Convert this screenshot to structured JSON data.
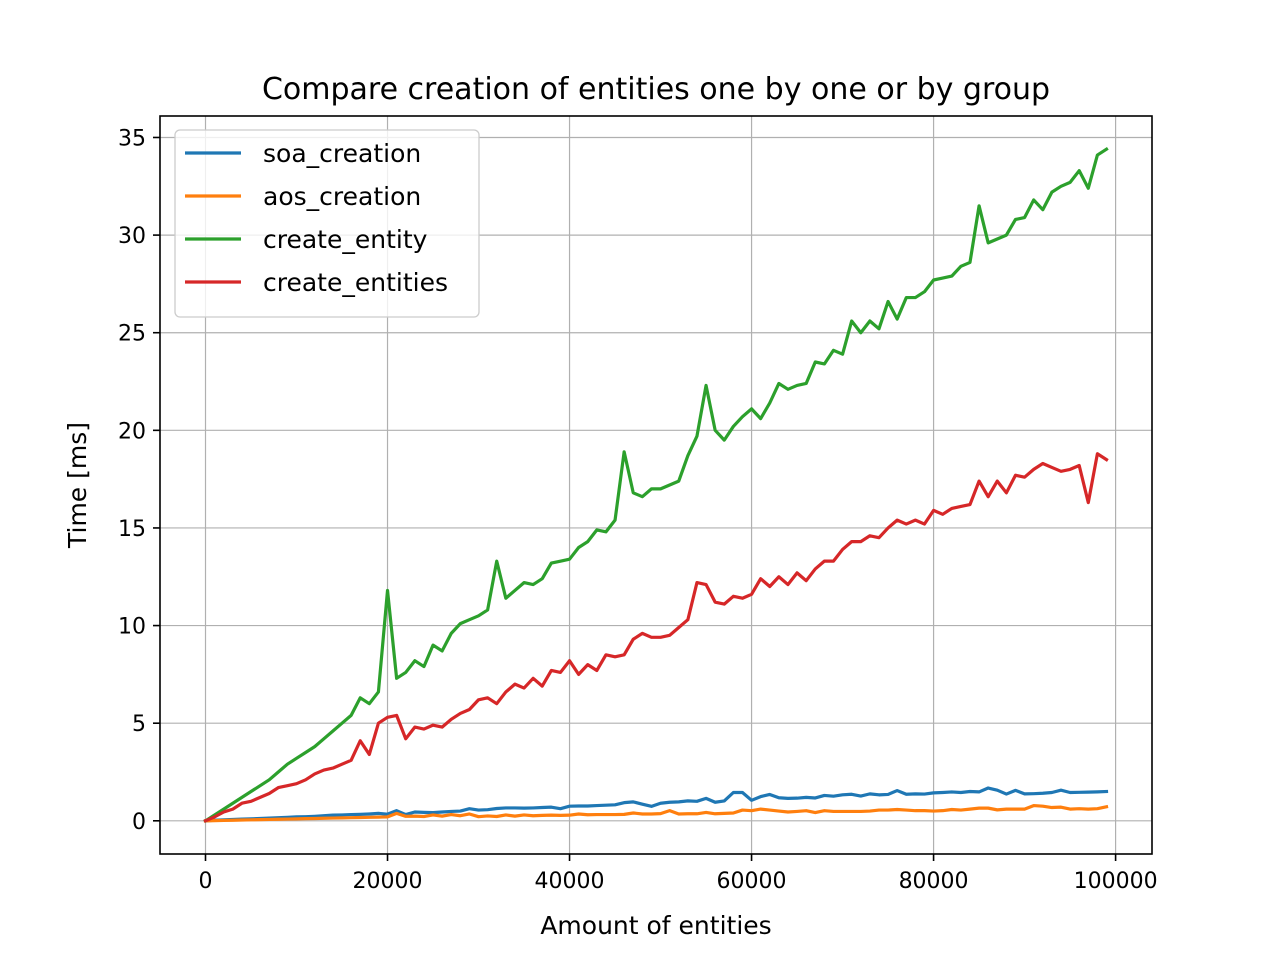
{
  "chart_data": {
    "type": "line",
    "title": "Compare creation of entities one by one or by group",
    "xlabel": "Amount of entities",
    "ylabel": "Time [ms]",
    "xlim": [
      -5000,
      104000
    ],
    "ylim": [
      -1.7,
      36.1
    ],
    "xticks": [
      0,
      20000,
      40000,
      60000,
      80000,
      100000
    ],
    "xtick_labels": [
      "0",
      "20000",
      "40000",
      "60000",
      "80000",
      "100000"
    ],
    "yticks": [
      0,
      5,
      10,
      15,
      20,
      25,
      30,
      35
    ],
    "ytick_labels": [
      "0",
      "5",
      "10",
      "15",
      "20",
      "25",
      "30",
      "35"
    ],
    "grid": true,
    "legend_position": "upper-left",
    "x": [
      0,
      1000,
      2000,
      3000,
      4000,
      5000,
      6000,
      7000,
      8000,
      9000,
      10000,
      11000,
      12000,
      13000,
      14000,
      15000,
      16000,
      17000,
      18000,
      19000,
      20000,
      21000,
      22000,
      23000,
      24000,
      25000,
      26000,
      27000,
      28000,
      29000,
      30000,
      31000,
      32000,
      33000,
      34000,
      35000,
      36000,
      37000,
      38000,
      39000,
      40000,
      41000,
      42000,
      43000,
      44000,
      45000,
      46000,
      47000,
      48000,
      49000,
      50000,
      51000,
      52000,
      53000,
      54000,
      55000,
      56000,
      57000,
      58000,
      59000,
      60000,
      61000,
      62000,
      63000,
      64000,
      65000,
      66000,
      67000,
      68000,
      69000,
      70000,
      71000,
      72000,
      73000,
      74000,
      75000,
      76000,
      77000,
      78000,
      79000,
      80000,
      81000,
      82000,
      83000,
      84000,
      85000,
      86000,
      87000,
      88000,
      89000,
      90000,
      91000,
      92000,
      93000,
      94000,
      95000,
      96000,
      97000,
      98000,
      99000
    ],
    "series": [
      {
        "name": "soa_creation",
        "color": "#1f77b4",
        "values": [
          0.0,
          0.03,
          0.05,
          0.07,
          0.09,
          0.1,
          0.12,
          0.14,
          0.16,
          0.18,
          0.2,
          0.21,
          0.23,
          0.26,
          0.29,
          0.3,
          0.32,
          0.33,
          0.35,
          0.38,
          0.34,
          0.52,
          0.32,
          0.45,
          0.43,
          0.42,
          0.45,
          0.48,
          0.5,
          0.62,
          0.55,
          0.57,
          0.63,
          0.66,
          0.66,
          0.65,
          0.66,
          0.68,
          0.7,
          0.62,
          0.75,
          0.76,
          0.76,
          0.78,
          0.8,
          0.82,
          0.93,
          0.97,
          0.85,
          0.74,
          0.9,
          0.95,
          0.97,
          1.02,
          1.0,
          1.15,
          0.95,
          1.02,
          1.45,
          1.45,
          1.05,
          1.24,
          1.35,
          1.18,
          1.15,
          1.16,
          1.2,
          1.17,
          1.3,
          1.26,
          1.33,
          1.36,
          1.27,
          1.38,
          1.33,
          1.35,
          1.55,
          1.36,
          1.38,
          1.37,
          1.43,
          1.45,
          1.48,
          1.45,
          1.5,
          1.48,
          1.68,
          1.57,
          1.37,
          1.56,
          1.38,
          1.39,
          1.41,
          1.45,
          1.57,
          1.45,
          1.46,
          1.47,
          1.48,
          1.5
        ]
      },
      {
        "name": "aos_creation",
        "color": "#ff7f0e",
        "values": [
          0.0,
          0.01,
          0.02,
          0.03,
          0.04,
          0.05,
          0.06,
          0.07,
          0.08,
          0.09,
          0.1,
          0.11,
          0.12,
          0.13,
          0.14,
          0.15,
          0.16,
          0.17,
          0.18,
          0.19,
          0.2,
          0.38,
          0.23,
          0.24,
          0.22,
          0.3,
          0.24,
          0.32,
          0.26,
          0.35,
          0.21,
          0.25,
          0.22,
          0.3,
          0.24,
          0.3,
          0.26,
          0.28,
          0.29,
          0.28,
          0.29,
          0.35,
          0.31,
          0.32,
          0.32,
          0.32,
          0.33,
          0.4,
          0.35,
          0.35,
          0.37,
          0.52,
          0.35,
          0.36,
          0.36,
          0.43,
          0.36,
          0.38,
          0.4,
          0.55,
          0.52,
          0.6,
          0.55,
          0.5,
          0.45,
          0.48,
          0.52,
          0.42,
          0.52,
          0.48,
          0.48,
          0.48,
          0.48,
          0.5,
          0.55,
          0.55,
          0.58,
          0.55,
          0.52,
          0.52,
          0.5,
          0.52,
          0.58,
          0.55,
          0.6,
          0.65,
          0.65,
          0.56,
          0.6,
          0.6,
          0.6,
          0.78,
          0.75,
          0.68,
          0.7,
          0.6,
          0.62,
          0.6,
          0.62,
          0.72
        ]
      },
      {
        "name": "create_entity",
        "color": "#2ca02c",
        "values": [
          0.0,
          0.3,
          0.6,
          0.9,
          1.2,
          1.5,
          1.8,
          2.1,
          2.5,
          2.9,
          3.2,
          3.5,
          3.8,
          4.2,
          4.6,
          5.0,
          5.4,
          6.3,
          6.0,
          6.6,
          11.8,
          7.3,
          7.6,
          8.2,
          7.9,
          9.0,
          8.7,
          9.6,
          10.1,
          10.3,
          10.5,
          10.8,
          13.3,
          11.4,
          11.8,
          12.2,
          12.1,
          12.4,
          13.2,
          13.3,
          13.4,
          14.0,
          14.3,
          14.9,
          14.8,
          15.4,
          18.9,
          16.8,
          16.6,
          17.0,
          17.0,
          17.2,
          17.4,
          18.7,
          19.7,
          22.3,
          20.0,
          19.5,
          20.2,
          20.7,
          21.1,
          20.6,
          21.4,
          22.4,
          22.1,
          22.3,
          22.4,
          23.5,
          23.4,
          24.1,
          23.9,
          25.6,
          25.0,
          25.6,
          25.2,
          26.6,
          25.7,
          26.8,
          26.8,
          27.1,
          27.7,
          27.8,
          27.9,
          28.4,
          28.6,
          31.5,
          29.6,
          29.8,
          30.0,
          30.8,
          30.9,
          31.8,
          31.3,
          32.2,
          32.5,
          32.7,
          33.3,
          32.4,
          34.1,
          34.4
        ]
      },
      {
        "name": "create_entities",
        "color": "#d62728",
        "values": [
          0.0,
          0.2,
          0.45,
          0.6,
          0.9,
          1.0,
          1.2,
          1.4,
          1.7,
          1.8,
          1.9,
          2.1,
          2.4,
          2.6,
          2.7,
          2.9,
          3.1,
          4.1,
          3.4,
          5.0,
          5.3,
          5.4,
          4.2,
          4.8,
          4.7,
          4.9,
          4.8,
          5.2,
          5.5,
          5.7,
          6.2,
          6.3,
          6.0,
          6.6,
          7.0,
          6.8,
          7.3,
          6.9,
          7.7,
          7.6,
          8.2,
          7.5,
          8.0,
          7.7,
          8.5,
          8.4,
          8.5,
          9.3,
          9.6,
          9.4,
          9.4,
          9.5,
          9.9,
          10.3,
          12.2,
          12.1,
          11.2,
          11.1,
          11.5,
          11.4,
          11.6,
          12.4,
          12.0,
          12.5,
          12.1,
          12.7,
          12.3,
          12.9,
          13.3,
          13.3,
          13.9,
          14.3,
          14.3,
          14.6,
          14.5,
          15.0,
          15.4,
          15.2,
          15.4,
          15.2,
          15.9,
          15.7,
          16.0,
          16.1,
          16.2,
          17.4,
          16.6,
          17.4,
          16.8,
          17.7,
          17.6,
          18.0,
          18.3,
          18.1,
          17.9,
          18.0,
          18.2,
          16.3,
          18.8,
          18.5
        ]
      }
    ]
  }
}
